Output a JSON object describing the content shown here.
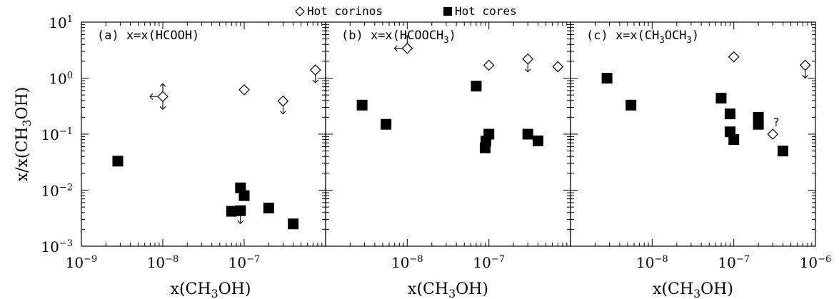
{
  "legend": {
    "position": "top-center",
    "items": [
      {
        "label": "Hot corinos",
        "marker": "diamond-open",
        "icon": "open-diamond-icon"
      },
      {
        "label": "Hot cores",
        "marker": "square-filled",
        "icon": "filled-square-icon"
      }
    ]
  },
  "colors": {
    "ink": "#000000",
    "background": "#ffffff"
  },
  "chart_data": [
    {
      "type": "scatter",
      "title": "(a) x=x(HCOOH)",
      "xlabel": "x(CH3OH)",
      "ylabel": "x/x(CH3OH)",
      "xscale": "log",
      "yscale": "log",
      "xlim": [
        1e-09,
        1e-06
      ],
      "ylim": [
        0.001,
        10
      ],
      "x_tick_labels": [
        "10-9",
        "10-8",
        "10-7"
      ],
      "y_tick_labels": [
        "10-3",
        "10-2",
        "10-1",
        "100",
        "101"
      ],
      "series": [
        {
          "name": "Hot corinos",
          "points": [
            {
              "x": 1e-08,
              "y": 0.47,
              "limits": [
                "left",
                "up",
                "down"
              ]
            },
            {
              "x": 1e-07,
              "y": 0.62
            },
            {
              "x": 3e-07,
              "y": 0.39,
              "limits": [
                "down"
              ]
            },
            {
              "x": 7.5e-07,
              "y": 1.4,
              "limits": [
                "down"
              ]
            }
          ]
        },
        {
          "name": "Hot cores",
          "points": [
            {
              "x": 2.8e-09,
              "y": 0.033
            },
            {
              "x": 7e-08,
              "y": 0.0042
            },
            {
              "x": 9e-08,
              "y": 0.0043,
              "limits": [
                "down"
              ]
            },
            {
              "x": 9e-08,
              "y": 0.011
            },
            {
              "x": 1e-07,
              "y": 0.008
            },
            {
              "x": 2e-07,
              "y": 0.0048
            },
            {
              "x": 4e-07,
              "y": 0.0025
            }
          ]
        }
      ]
    },
    {
      "type": "scatter",
      "title": "(b) x=x(HCOOCH3)",
      "xlabel": "x(CH3OH)",
      "xscale": "log",
      "yscale": "log",
      "xlim": [
        1e-09,
        1e-06
      ],
      "ylim": [
        0.001,
        10
      ],
      "x_tick_labels": [
        "10-8",
        "10-7"
      ],
      "series": [
        {
          "name": "Hot corinos",
          "points": [
            {
              "x": 1e-08,
              "y": 3.4,
              "limits": [
                "left",
                "up"
              ]
            },
            {
              "x": 1e-07,
              "y": 1.7
            },
            {
              "x": 3e-07,
              "y": 2.2,
              "limits": [
                "down"
              ]
            },
            {
              "x": 7e-07,
              "y": 1.6
            }
          ]
        },
        {
          "name": "Hot cores",
          "points": [
            {
              "x": 2.8e-09,
              "y": 0.33
            },
            {
              "x": 5.5e-09,
              "y": 0.15
            },
            {
              "x": 7e-08,
              "y": 0.72
            },
            {
              "x": 9e-08,
              "y": 0.057
            },
            {
              "x": 9.2e-08,
              "y": 0.075
            },
            {
              "x": 1e-07,
              "y": 0.1
            },
            {
              "x": 3e-07,
              "y": 0.1
            },
            {
              "x": 4e-07,
              "y": 0.076
            }
          ]
        }
      ]
    },
    {
      "type": "scatter",
      "title": "(c) x=x(CH3OCH3)",
      "xlabel": "x(CH3OH)",
      "xscale": "log",
      "yscale": "log",
      "xlim": [
        1e-09,
        1e-06
      ],
      "ylim": [
        0.001,
        10
      ],
      "x_tick_labels": [
        "10-8",
        "10-7",
        "10-6"
      ],
      "annotation": "?",
      "series": [
        {
          "name": "Hot corinos",
          "points": [
            {
              "x": 1e-07,
              "y": 2.4
            },
            {
              "x": 3e-07,
              "y": 0.1
            },
            {
              "x": 7.5e-07,
              "y": 1.7,
              "limits": [
                "down"
              ]
            }
          ]
        },
        {
          "name": "Hot cores",
          "points": [
            {
              "x": 2.8e-09,
              "y": 1.0
            },
            {
              "x": 5.5e-09,
              "y": 0.33
            },
            {
              "x": 7e-08,
              "y": 0.44
            },
            {
              "x": 9e-08,
              "y": 0.23
            },
            {
              "x": 9e-08,
              "y": 0.11
            },
            {
              "x": 1e-07,
              "y": 0.08
            },
            {
              "x": 2e-07,
              "y": 0.2
            },
            {
              "x": 2e-07,
              "y": 0.15
            },
            {
              "x": 4e-07,
              "y": 0.05
            }
          ]
        }
      ]
    }
  ]
}
